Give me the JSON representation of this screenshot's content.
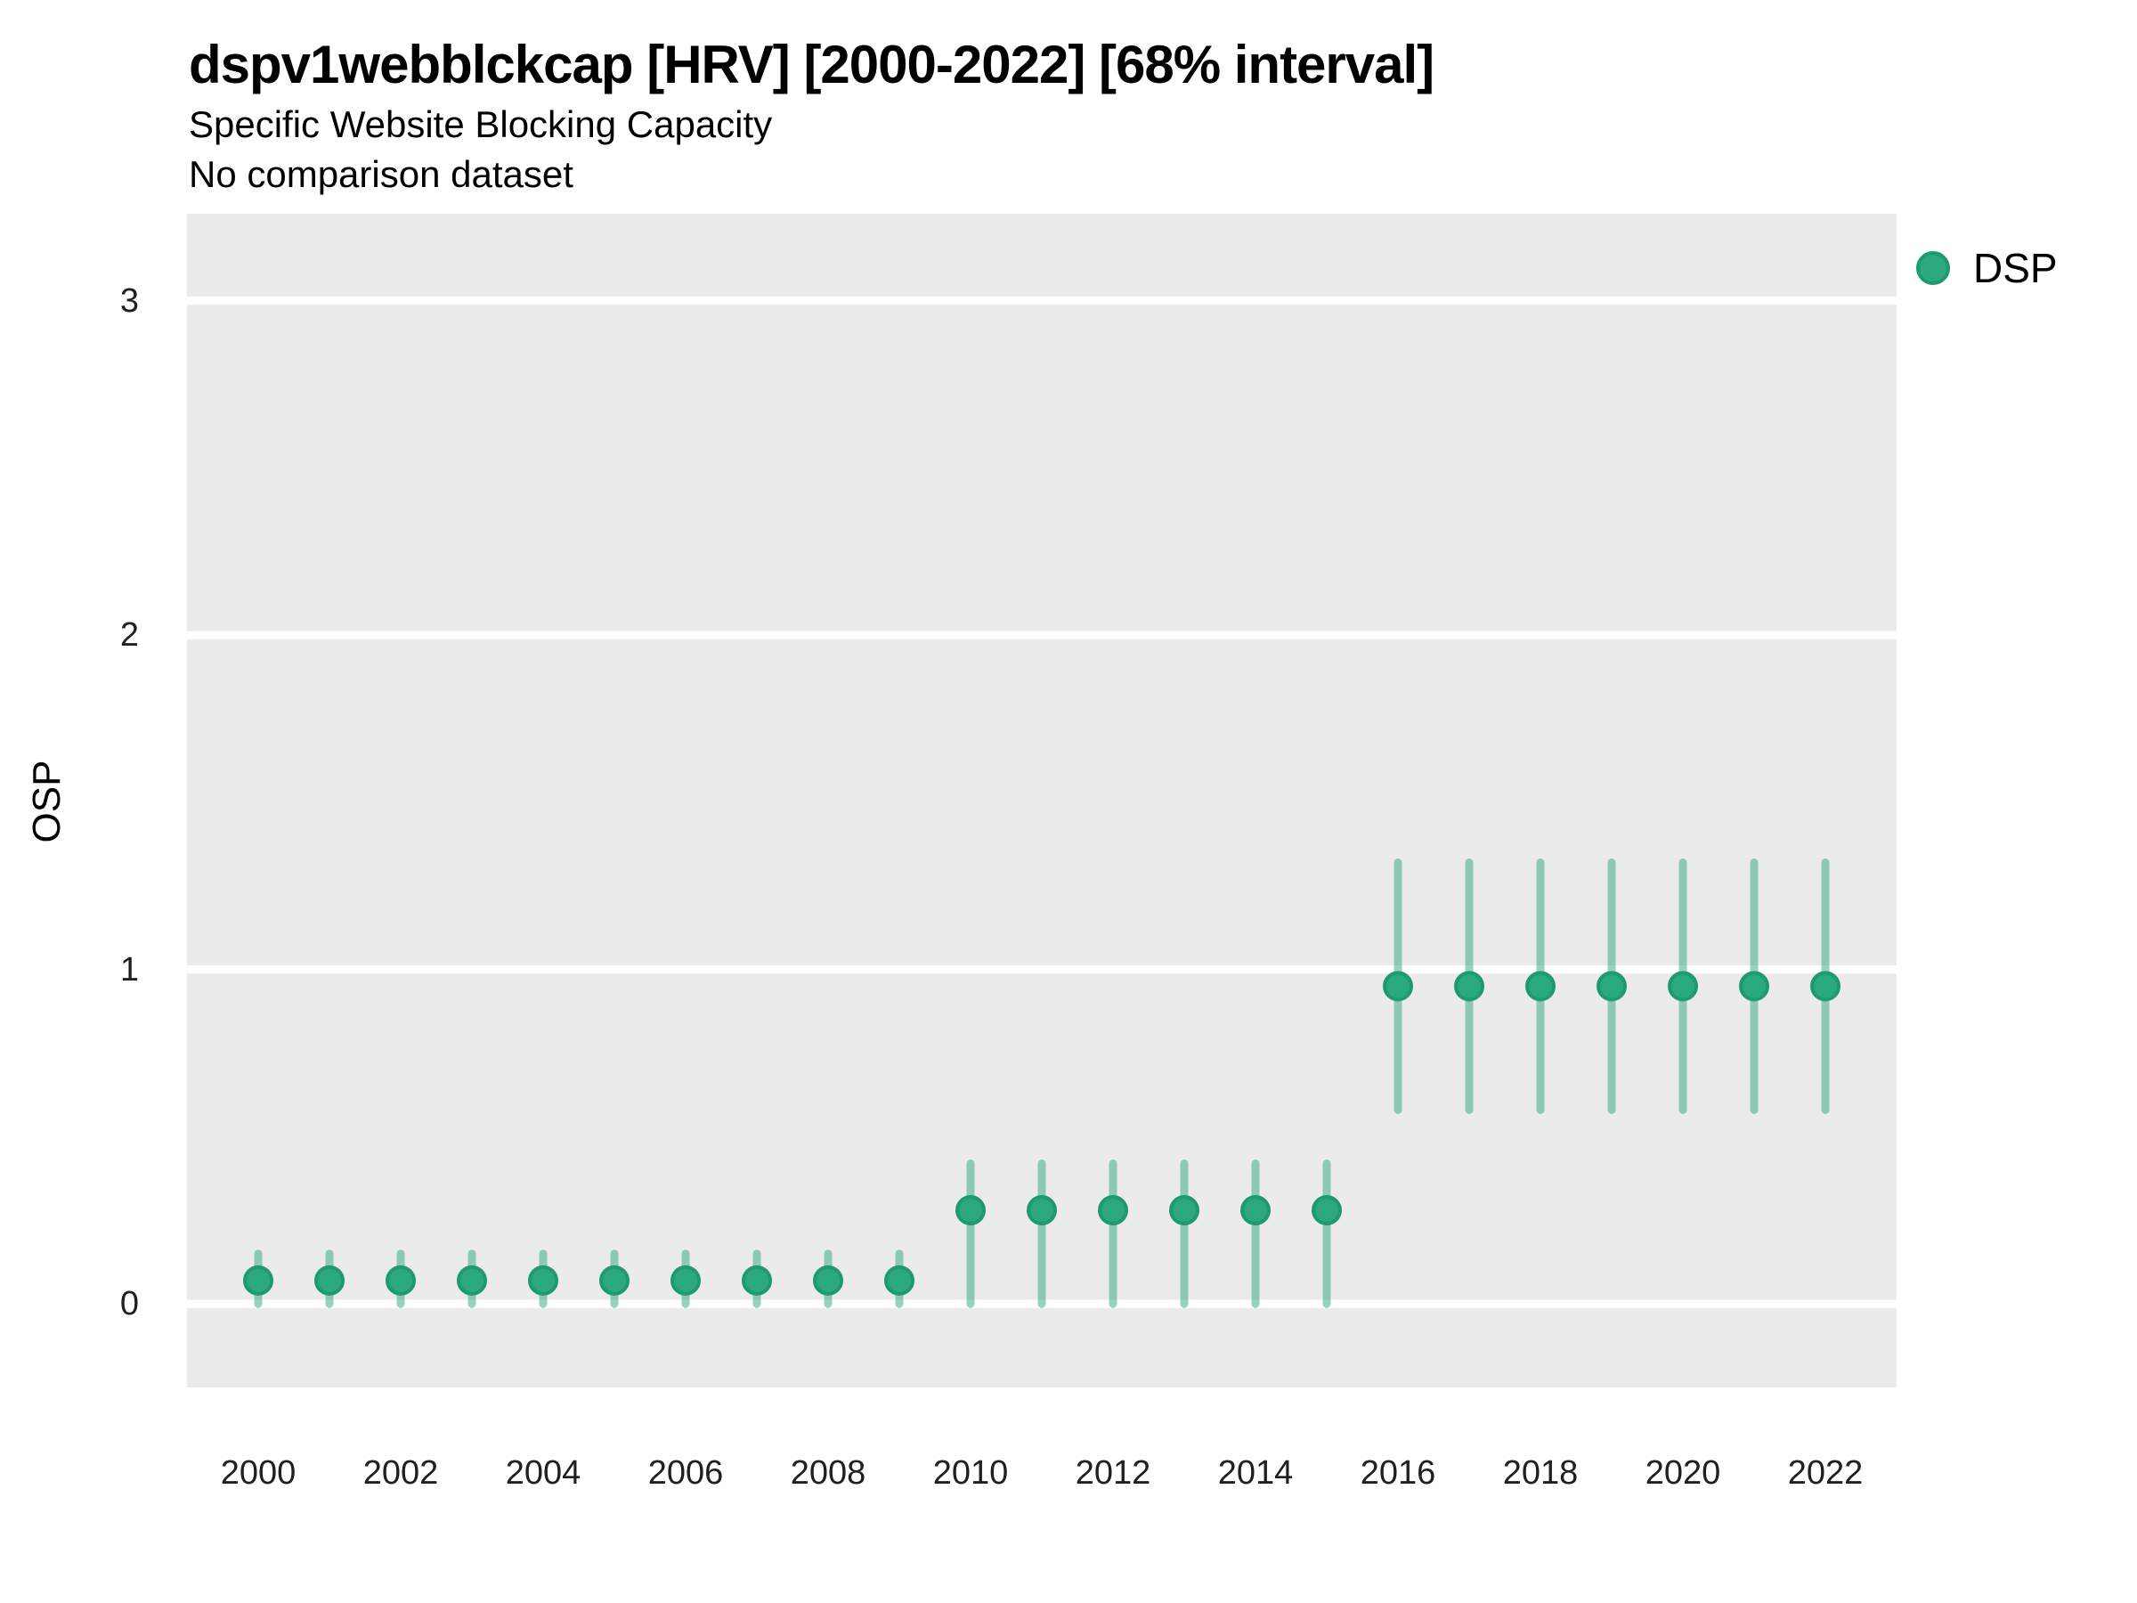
{
  "header": {
    "title": "dspv1webblckcap [HRV] [2000-2022] [68% interval]",
    "subtitle": "Specific Website Blocking Capacity",
    "note": "No comparison dataset"
  },
  "legend": {
    "position": "right-top",
    "items": [
      {
        "label": "DSP",
        "color": "#2BA87D"
      }
    ]
  },
  "colors": {
    "panel_background": "#EBEBEB",
    "gridline": "#FFFFFF",
    "point_fill": "#2BA87D",
    "point_stroke": "#1E9B6E",
    "interval_stroke": "rgba(43,168,125,0.5)",
    "text": "#000000",
    "tick_text": "#1F1F1F"
  },
  "chart_data": {
    "type": "scatter",
    "subtype": "pointrange",
    "title": "dspv1webblckcap [HRV] [2000-2022] [68% interval]",
    "subtitle": "Specific Website Blocking Capacity",
    "note": "No comparison dataset",
    "xlabel": "",
    "ylabel": "OSP",
    "interval_level": "68%",
    "grid": "horizontal-major-only",
    "legend_position": "right-top",
    "ylim": [
      -0.25,
      3.26
    ],
    "y_ticks": [
      0,
      1,
      2,
      3
    ],
    "x_tick_labels": [
      "2000",
      "2002",
      "2004",
      "2006",
      "2008",
      "2010",
      "2012",
      "2014",
      "2016",
      "2018",
      "2020",
      "2022"
    ],
    "series": [
      {
        "name": "DSP",
        "points": [
          {
            "year": 2000,
            "value": 0.07,
            "lower": 0.0,
            "upper": 0.15
          },
          {
            "year": 2001,
            "value": 0.07,
            "lower": 0.0,
            "upper": 0.15
          },
          {
            "year": 2002,
            "value": 0.07,
            "lower": 0.0,
            "upper": 0.15
          },
          {
            "year": 2003,
            "value": 0.07,
            "lower": 0.0,
            "upper": 0.15
          },
          {
            "year": 2004,
            "value": 0.07,
            "lower": 0.0,
            "upper": 0.15
          },
          {
            "year": 2005,
            "value": 0.07,
            "lower": 0.0,
            "upper": 0.15
          },
          {
            "year": 2006,
            "value": 0.07,
            "lower": 0.0,
            "upper": 0.15
          },
          {
            "year": 2007,
            "value": 0.07,
            "lower": 0.0,
            "upper": 0.15
          },
          {
            "year": 2008,
            "value": 0.07,
            "lower": 0.0,
            "upper": 0.15
          },
          {
            "year": 2009,
            "value": 0.07,
            "lower": 0.0,
            "upper": 0.15
          },
          {
            "year": 2010,
            "value": 0.28,
            "lower": 0.0,
            "upper": 0.42
          },
          {
            "year": 2011,
            "value": 0.28,
            "lower": 0.0,
            "upper": 0.42
          },
          {
            "year": 2012,
            "value": 0.28,
            "lower": 0.0,
            "upper": 0.42
          },
          {
            "year": 2013,
            "value": 0.28,
            "lower": 0.0,
            "upper": 0.42
          },
          {
            "year": 2014,
            "value": 0.28,
            "lower": 0.0,
            "upper": 0.42
          },
          {
            "year": 2015,
            "value": 0.28,
            "lower": 0.0,
            "upper": 0.42
          },
          {
            "year": 2016,
            "value": 0.95,
            "lower": 0.58,
            "upper": 1.32
          },
          {
            "year": 2017,
            "value": 0.95,
            "lower": 0.58,
            "upper": 1.32
          },
          {
            "year": 2018,
            "value": 0.95,
            "lower": 0.58,
            "upper": 1.32
          },
          {
            "year": 2019,
            "value": 0.95,
            "lower": 0.58,
            "upper": 1.32
          },
          {
            "year": 2020,
            "value": 0.95,
            "lower": 0.58,
            "upper": 1.32
          },
          {
            "year": 2021,
            "value": 0.95,
            "lower": 0.58,
            "upper": 1.32
          },
          {
            "year": 2022,
            "value": 0.95,
            "lower": 0.58,
            "upper": 1.32
          }
        ]
      }
    ]
  }
}
